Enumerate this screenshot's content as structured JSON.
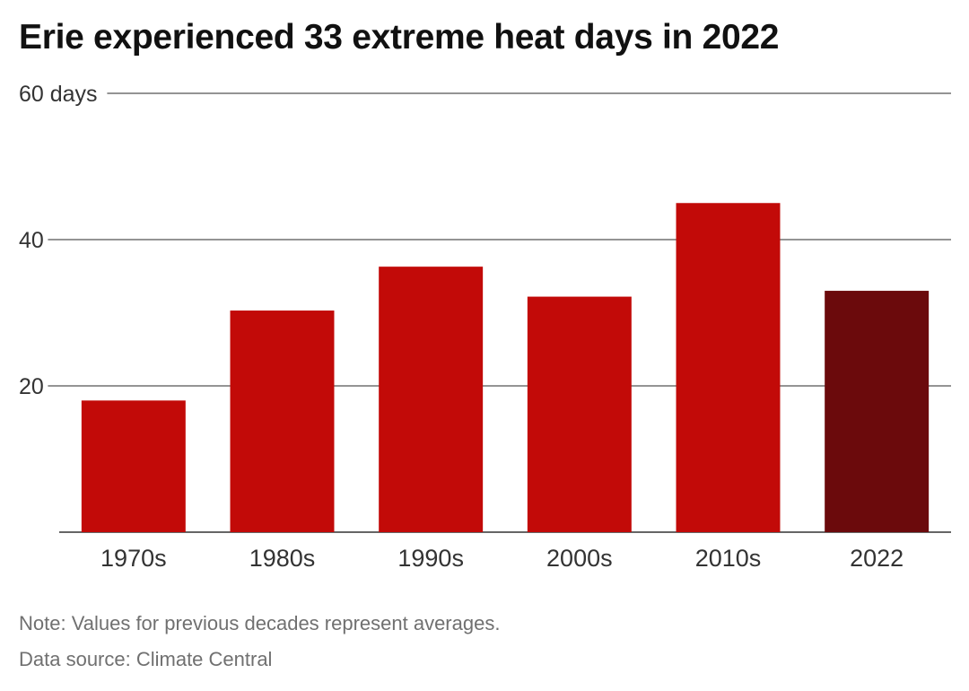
{
  "title": "Erie experienced 33 extreme heat days in 2022",
  "notes": {
    "note": "Note: Values for previous decades represent averages.",
    "source": "Data source: Climate Central"
  },
  "chart_data": {
    "type": "bar",
    "categories": [
      "1970s",
      "1980s",
      "1990s",
      "2000s",
      "2010s",
      "2022"
    ],
    "values": [
      18,
      30.3,
      36.3,
      32.2,
      45,
      33
    ],
    "ylim": [
      0,
      60
    ],
    "yticks": [
      {
        "value": 60,
        "label": "60 days"
      },
      {
        "value": 40,
        "label": "40"
      },
      {
        "value": 20,
        "label": "20"
      }
    ],
    "grid": true,
    "colors": {
      "bar": "#c20a08",
      "highlight": "#6b0a0c",
      "gridline": "#555555",
      "axis_text": "#333333"
    },
    "highlight_index": 5
  }
}
